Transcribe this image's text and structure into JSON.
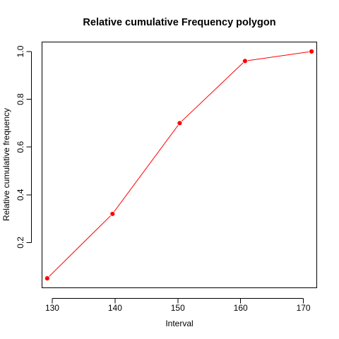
{
  "chart_data": {
    "type": "line",
    "title": "Relative cumulative Frequency polygon",
    "xlabel": "Interval",
    "ylabel": "Relative cumulative frequency",
    "x": [
      129.2,
      139.6,
      150.3,
      160.7,
      171.3
    ],
    "series": [
      {
        "values": [
          0.05,
          0.32,
          0.7,
          0.96,
          1.0
        ],
        "color": "#ff0000",
        "marker_color": "#ff0000"
      }
    ],
    "x_ticks": [
      130,
      140,
      150,
      160,
      170
    ],
    "x_tick_labels": [
      "130",
      "140",
      "150",
      "160",
      "170"
    ],
    "y_ticks": [
      0.2,
      0.4,
      0.6,
      0.8,
      1.0
    ],
    "y_tick_labels": [
      "0.2",
      "0.4",
      "0.6",
      "0.8",
      "1.0"
    ],
    "xlim": [
      128.43,
      172.07
    ],
    "ylim": [
      0.012,
      1.038
    ],
    "grid": false,
    "legend": "none"
  }
}
